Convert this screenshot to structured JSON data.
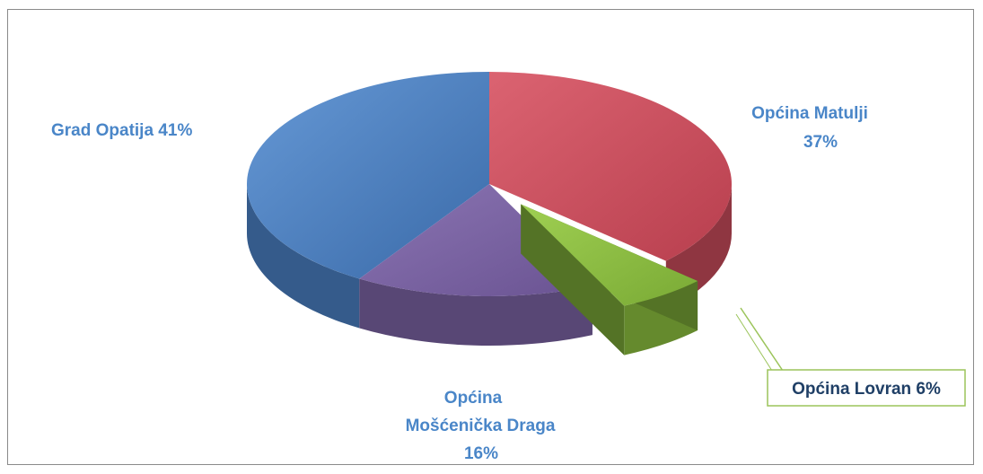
{
  "chart_data": {
    "type": "pie",
    "style": "3d-exploded",
    "slices": [
      {
        "name": "Grad Opatija",
        "value": 41,
        "label": "Grad Opatija 41%",
        "color": "#4a7fc1"
      },
      {
        "name": "Općina Matulji",
        "value": 37,
        "label_lines": [
          "Općina Matulji",
          "37%"
        ],
        "color": "#c74b5a"
      },
      {
        "name": "Općina Lovran",
        "value": 6,
        "label": "Općina Lovran 6%",
        "color": "#8cbf3f",
        "exploded": true
      },
      {
        "name": "Općina Mošćenička Draga",
        "value": 16,
        "label_lines": [
          "Općina",
          "Mošćenička Draga",
          "16%"
        ],
        "color": "#7a62a3"
      }
    ],
    "label_color": "#4a86c8",
    "callout_label_color": "#1f3f66",
    "callout_border_color": "#9bc45a"
  }
}
